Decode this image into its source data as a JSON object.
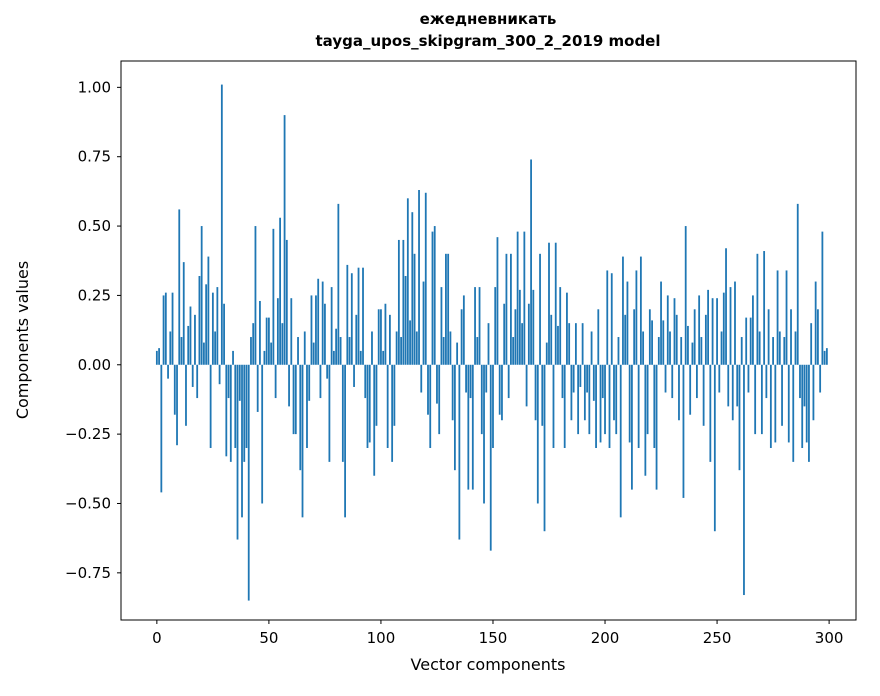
{
  "chart_data": {
    "type": "bar",
    "title": "ежедневникать",
    "subtitle": "tayga_upos_skipgram_300_2_2019 model",
    "xlabel": "Vector components",
    "ylabel": "Components values",
    "bar_color": "#1f77b4",
    "xlim": [
      -16,
      312
    ],
    "ylim": [
      -0.92,
      1.095
    ],
    "xticks": [
      0,
      50,
      100,
      150,
      200,
      250,
      300
    ],
    "yticks": [
      1.0,
      0.75,
      0.5,
      0.25,
      0.0,
      -0.25,
      -0.5,
      -0.75
    ],
    "x_start": 0,
    "values": [
      0.05,
      0.06,
      -0.46,
      0.25,
      0.26,
      -0.05,
      0.12,
      0.26,
      -0.18,
      -0.29,
      0.56,
      0.1,
      0.37,
      -0.22,
      0.14,
      0.21,
      -0.08,
      0.18,
      -0.12,
      0.32,
      0.5,
      0.08,
      0.29,
      0.39,
      -0.3,
      0.26,
      0.12,
      0.28,
      -0.07,
      1.01,
      0.22,
      -0.33,
      -0.12,
      -0.35,
      0.05,
      -0.3,
      -0.63,
      -0.13,
      -0.55,
      -0.35,
      -0.3,
      -0.85,
      0.1,
      0.15,
      0.5,
      -0.17,
      0.23,
      -0.5,
      0.05,
      0.17,
      0.17,
      0.08,
      0.49,
      -0.12,
      0.24,
      0.53,
      0.15,
      0.9,
      0.45,
      -0.15,
      0.24,
      -0.25,
      -0.25,
      0.1,
      -0.38,
      -0.55,
      0.12,
      -0.3,
      -0.13,
      0.25,
      0.08,
      0.25,
      0.31,
      -0.12,
      0.3,
      0.22,
      -0.05,
      -0.35,
      0.28,
      0.05,
      0.13,
      0.58,
      0.1,
      -0.35,
      -0.55,
      0.36,
      0.1,
      0.33,
      -0.08,
      0.18,
      0.35,
      0.05,
      0.35,
      -0.12,
      -0.3,
      -0.28,
      0.12,
      -0.4,
      -0.22,
      0.2,
      0.2,
      0.05,
      0.22,
      -0.3,
      0.18,
      -0.35,
      -0.22,
      0.12,
      0.45,
      0.1,
      0.45,
      0.32,
      0.6,
      0.16,
      0.55,
      0.4,
      0.12,
      0.63,
      -0.1,
      0.3,
      0.62,
      -0.18,
      -0.3,
      0.48,
      0.5,
      -0.14,
      -0.25,
      0.28,
      0.1,
      0.4,
      0.4,
      0.12,
      -0.2,
      -0.38,
      0.08,
      -0.63,
      0.2,
      0.25,
      -0.1,
      -0.45,
      -0.12,
      -0.45,
      0.28,
      0.1,
      0.28,
      -0.25,
      -0.5,
      -0.1,
      0.15,
      -0.67,
      -0.3,
      0.28,
      0.46,
      -0.18,
      -0.2,
      0.22,
      0.4,
      -0.12,
      0.4,
      0.1,
      0.2,
      0.48,
      0.27,
      0.15,
      0.48,
      -0.15,
      0.22,
      0.74,
      0.27,
      -0.2,
      -0.5,
      0.4,
      -0.22,
      -0.6,
      0.08,
      0.44,
      0.18,
      -0.3,
      0.44,
      0.14,
      0.28,
      -0.12,
      -0.3,
      0.26,
      0.15,
      -0.2,
      -0.1,
      0.15,
      -0.25,
      -0.08,
      0.15,
      -0.2,
      -0.1,
      -0.25,
      0.12,
      -0.13,
      -0.3,
      0.2,
      -0.28,
      -0.12,
      -0.25,
      0.34,
      -0.3,
      0.33,
      -0.2,
      -0.25,
      0.1,
      -0.55,
      0.39,
      0.18,
      0.3,
      -0.28,
      -0.45,
      0.2,
      0.34,
      -0.3,
      0.39,
      0.12,
      -0.4,
      -0.25,
      0.2,
      0.16,
      -0.3,
      -0.45,
      0.1,
      0.3,
      0.16,
      -0.1,
      0.25,
      0.12,
      -0.12,
      0.24,
      0.18,
      -0.2,
      0.1,
      -0.48,
      0.5,
      0.14,
      -0.18,
      0.08,
      0.2,
      -0.12,
      0.25,
      0.1,
      -0.22,
      0.18,
      0.27,
      -0.35,
      0.24,
      -0.6,
      0.24,
      -0.1,
      0.12,
      0.26,
      0.42,
      -0.15,
      0.28,
      -0.2,
      0.3,
      -0.15,
      -0.38,
      0.1,
      -0.83,
      0.17,
      -0.1,
      0.17,
      0.25,
      -0.25,
      0.4,
      0.12,
      -0.25,
      0.41,
      -0.12,
      0.2,
      -0.3,
      0.1,
      -0.28,
      0.34,
      0.12,
      -0.22,
      0.1,
      0.34,
      -0.28,
      0.2,
      -0.35,
      0.12,
      0.58,
      -0.12,
      -0.3,
      -0.15,
      -0.28,
      -0.35,
      0.15,
      -0.2,
      0.3,
      0.2,
      -0.1,
      0.48,
      0.05,
      0.06
    ]
  }
}
